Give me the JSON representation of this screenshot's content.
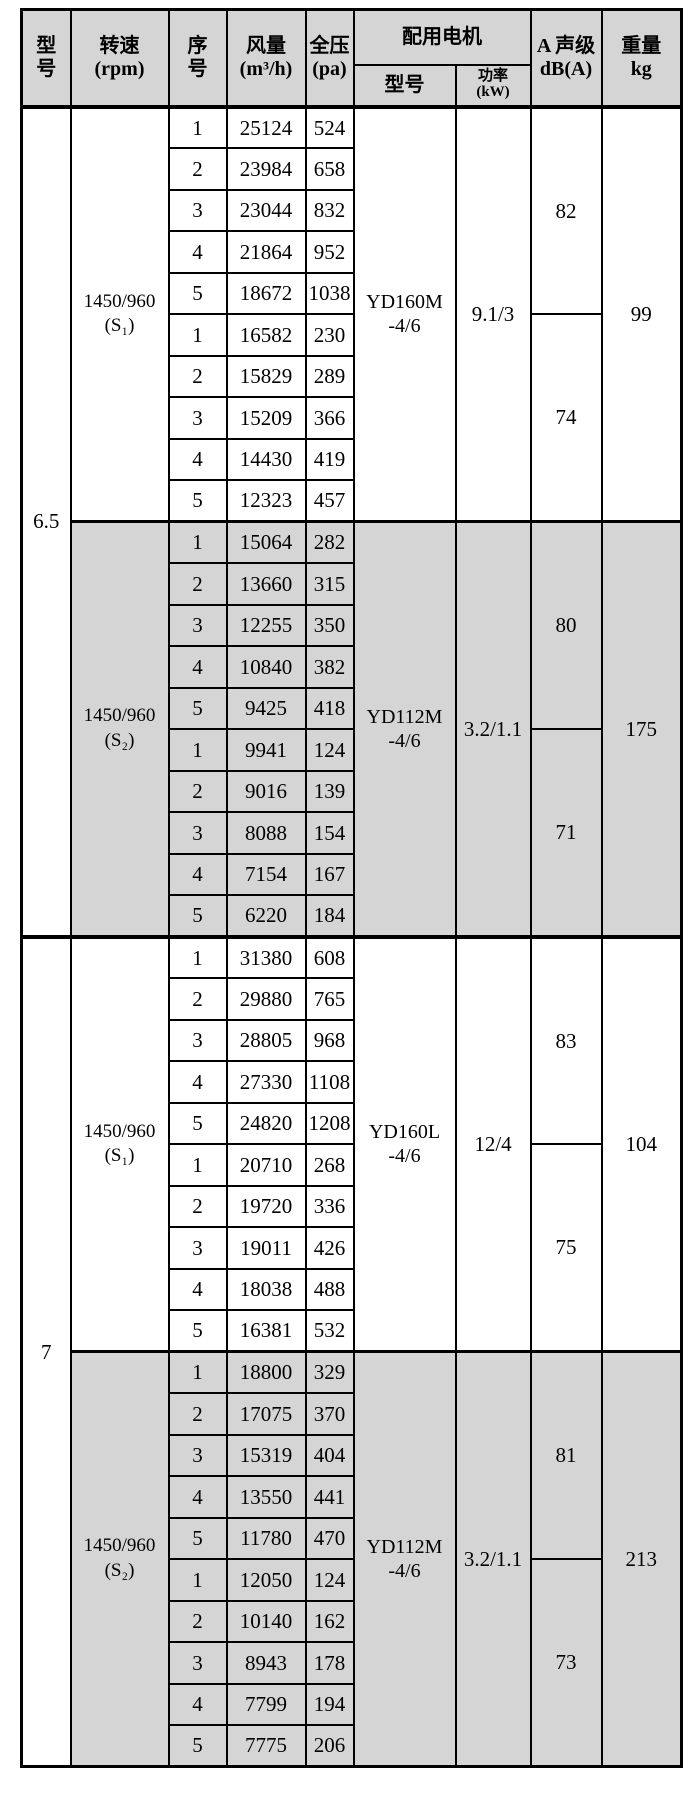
{
  "header": {
    "model": "型\n号",
    "speed": "转速\n(rpm)",
    "serial": "序\n号",
    "flow": "风量\n(m³/h)",
    "pressure": "全压\n(pa)",
    "motor_group": "配用电机",
    "motor_model": "型号",
    "motor_power": "功率\n(kW)",
    "noise": "A 声级\ndB(A)",
    "weight": "重量\nkg"
  },
  "colors": {
    "shaded_bg": "#d5d5d5",
    "border": "#000000",
    "background": "#ffffff"
  },
  "sections": [
    {
      "model": "6.5",
      "subsections": [
        {
          "speed": "1450/960\n(S₁)",
          "shaded": false,
          "motor_model": "YD160M\n-4/6",
          "power": "9.1/3",
          "db": [
            "82",
            "74"
          ],
          "weight": "99",
          "rows": [
            {
              "no": "1",
              "flow": "25124",
              "pressure": "524"
            },
            {
              "no": "2",
              "flow": "23984",
              "pressure": "658"
            },
            {
              "no": "3",
              "flow": "23044",
              "pressure": "832"
            },
            {
              "no": "4",
              "flow": "21864",
              "pressure": "952"
            },
            {
              "no": "5",
              "flow": "18672",
              "pressure": "1038"
            },
            {
              "no": "1",
              "flow": "16582",
              "pressure": "230"
            },
            {
              "no": "2",
              "flow": "15829",
              "pressure": "289"
            },
            {
              "no": "3",
              "flow": "15209",
              "pressure": "366"
            },
            {
              "no": "4",
              "flow": "14430",
              "pressure": "419"
            },
            {
              "no": "5",
              "flow": "12323",
              "pressure": "457"
            }
          ]
        },
        {
          "speed": "1450/960\n(S₂)",
          "shaded": true,
          "motor_model": "YD112M\n-4/6",
          "power": "3.2/1.1",
          "db": [
            "80",
            "71"
          ],
          "weight": "175",
          "rows": [
            {
              "no": "1",
              "flow": "15064",
              "pressure": "282"
            },
            {
              "no": "2",
              "flow": "13660",
              "pressure": "315"
            },
            {
              "no": "3",
              "flow": "12255",
              "pressure": "350"
            },
            {
              "no": "4",
              "flow": "10840",
              "pressure": "382"
            },
            {
              "no": "5",
              "flow": "9425",
              "pressure": "418"
            },
            {
              "no": "1",
              "flow": "9941",
              "pressure": "124"
            },
            {
              "no": "2",
              "flow": "9016",
              "pressure": "139"
            },
            {
              "no": "3",
              "flow": "8088",
              "pressure": "154"
            },
            {
              "no": "4",
              "flow": "7154",
              "pressure": "167"
            },
            {
              "no": "5",
              "flow": "6220",
              "pressure": "184"
            }
          ]
        }
      ]
    },
    {
      "model": "7",
      "subsections": [
        {
          "speed": "1450/960\n(S₁)",
          "shaded": false,
          "motor_model": "YD160L\n-4/6",
          "power": "12/4",
          "db": [
            "83",
            "75"
          ],
          "weight": "104",
          "rows": [
            {
              "no": "1",
              "flow": "31380",
              "pressure": "608"
            },
            {
              "no": "2",
              "flow": "29880",
              "pressure": "765"
            },
            {
              "no": "3",
              "flow": "28805",
              "pressure": "968"
            },
            {
              "no": "4",
              "flow": "27330",
              "pressure": "1108"
            },
            {
              "no": "5",
              "flow": "24820",
              "pressure": "1208"
            },
            {
              "no": "1",
              "flow": "20710",
              "pressure": "268"
            },
            {
              "no": "2",
              "flow": "19720",
              "pressure": "336"
            },
            {
              "no": "3",
              "flow": "19011",
              "pressure": "426"
            },
            {
              "no": "4",
              "flow": "18038",
              "pressure": "488"
            },
            {
              "no": "5",
              "flow": "16381",
              "pressure": "532"
            }
          ]
        },
        {
          "speed": "1450/960\n(S₂)",
          "shaded": true,
          "motor_model": "YD112M\n-4/6",
          "power": "3.2/1.1",
          "db": [
            "81",
            "73"
          ],
          "weight": "213",
          "rows": [
            {
              "no": "1",
              "flow": "18800",
              "pressure": "329"
            },
            {
              "no": "2",
              "flow": "17075",
              "pressure": "370"
            },
            {
              "no": "3",
              "flow": "15319",
              "pressure": "404"
            },
            {
              "no": "4",
              "flow": "13550",
              "pressure": "441"
            },
            {
              "no": "5",
              "flow": "11780",
              "pressure": "470"
            },
            {
              "no": "1",
              "flow": "12050",
              "pressure": "124"
            },
            {
              "no": "2",
              "flow": "10140",
              "pressure": "162"
            },
            {
              "no": "3",
              "flow": "8943",
              "pressure": "178"
            },
            {
              "no": "4",
              "flow": "7799",
              "pressure": "194"
            },
            {
              "no": "5",
              "flow": "7775",
              "pressure": "206"
            }
          ]
        }
      ]
    }
  ]
}
